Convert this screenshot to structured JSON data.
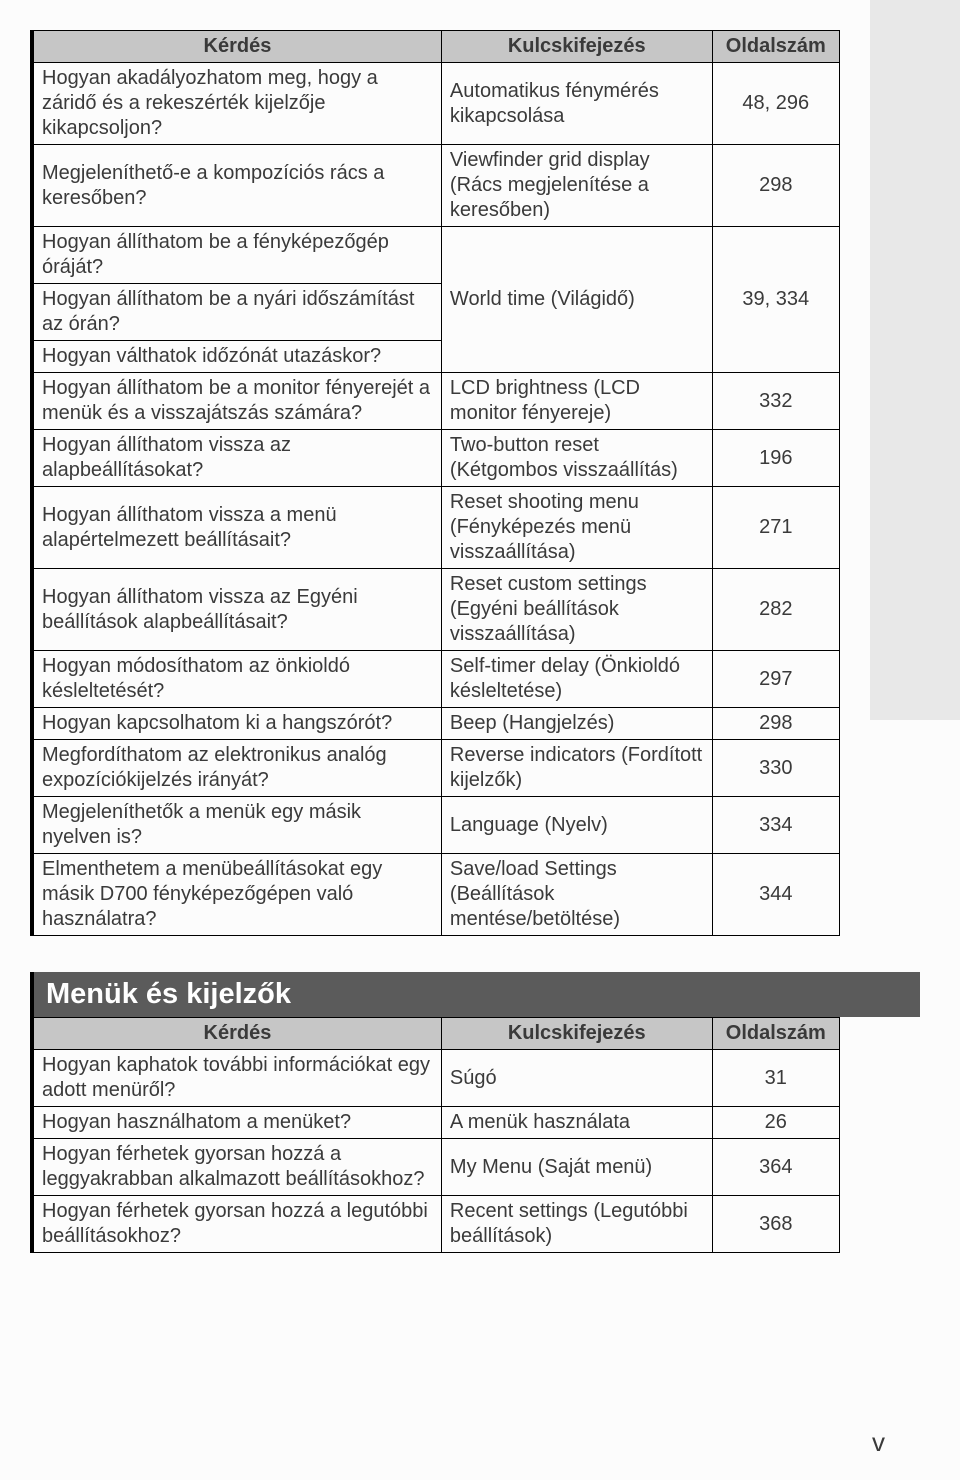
{
  "section1": {
    "headers": {
      "q": "Kérdés",
      "k": "Kulcskifejezés",
      "p": "Oldalszám"
    },
    "rows": [
      {
        "q": "Hogyan akadályozhatom meg, hogy a záridő és a rekeszérték kijelzője kikapcsoljon?",
        "k": "Automatikus fénymérés kikapcsolása",
        "p": "48, 296"
      },
      {
        "q": "Megjeleníthető-e a kompozíciós rács a keresőben?",
        "k": "Viewfinder grid display (Rács megjelenítése a keresőben)",
        "p": "298"
      },
      {
        "q": "Hogyan állíthatom be a fényképezőgép óráját?",
        "k": "World time (Világidő)",
        "p": "39, 334",
        "kspan": 3,
        "pspan": 3
      },
      {
        "q": "Hogyan állíthatom be a nyári időszámítást az órán?"
      },
      {
        "q": "Hogyan válthatok időzónát utazáskor?"
      },
      {
        "q": "Hogyan állíthatom be a monitor fényerejét a menük és a visszajátszás számára?",
        "k": "LCD brightness (LCD monitor fényereje)",
        "p": "332"
      },
      {
        "q": "Hogyan állíthatom vissza az alapbeállításokat?",
        "k": "Two-button reset (Kétgombos visszaállítás)",
        "p": "196"
      },
      {
        "q": "Hogyan állíthatom vissza a menü alapértelmezett beállításait?",
        "k": "Reset shooting menu (Fényképezés menü visszaállítása)",
        "p": "271"
      },
      {
        "q": "Hogyan állíthatom vissza az Egyéni beállítások alapbeállításait?",
        "k": "Reset custom settings (Egyéni beállítások visszaállítása)",
        "p": "282"
      },
      {
        "q": "Hogyan módosíthatom az önkioldó késleltetését?",
        "k": "Self-timer delay (Önkioldó késleltetése)",
        "p": "297"
      },
      {
        "q": "Hogyan kapcsolhatom ki a hangszórót?",
        "k": "Beep (Hangjelzés)",
        "p": "298"
      },
      {
        "q": "Megfordíthatom az elektronikus analóg expozíciókijelzés irányát?",
        "k": "Reverse indicators (Fordított kijelzők)",
        "p": "330"
      },
      {
        "q": "Megjeleníthetők a menük egy másik nyelven is?",
        "k": "Language (Nyelv)",
        "p": "334"
      },
      {
        "q": "Elmenthetem a menübeállításokat egy másik D700 fényképezőgépen való használatra?",
        "k": "Save/load Settings (Beállítások mentése/betöltése)",
        "p": "344"
      }
    ]
  },
  "section2": {
    "title": "Menük és kijelzők",
    "headers": {
      "q": "Kérdés",
      "k": "Kulcskifejezés",
      "p": "Oldalszám"
    },
    "rows": [
      {
        "q": "Hogyan kaphatok további információkat egy adott menüről?",
        "k": "Súgó",
        "p": "31"
      },
      {
        "q": "Hogyan használhatom a menüket?",
        "k": "A menük használata",
        "p": "26"
      },
      {
        "q": "Hogyan férhetek gyorsan hozzá a leggyakrabban alkalmazott beállításokhoz?",
        "k": "My Menu (Saját menü)",
        "p": "364"
      },
      {
        "q": "Hogyan férhetek gyorsan hozzá a legutóbbi beállításokhoz?",
        "k": "Recent settings (Legutóbbi beállítások)",
        "p": "368"
      }
    ]
  },
  "pageNumber": "v"
}
